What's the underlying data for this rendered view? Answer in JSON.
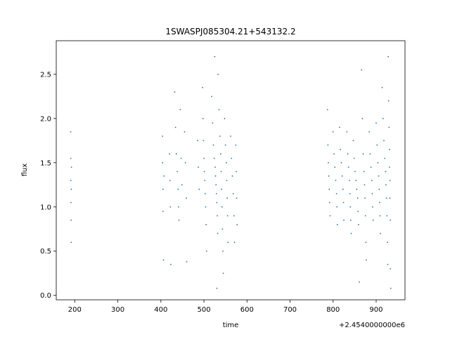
{
  "chart_data": {
    "type": "scatter",
    "title": "1SWASPJ085304.21+543132.2",
    "xlabel": "time",
    "ylabel": "flux",
    "x_offset_label": "+2.4540000000e6",
    "x_offset": 2454000,
    "xlim": [
      157,
      967
    ],
    "ylim": [
      -0.05,
      2.88
    ],
    "x_ticks": [
      200,
      300,
      400,
      500,
      600,
      700,
      800,
      900
    ],
    "y_ticks": [
      0.0,
      0.5,
      1.0,
      1.5,
      2.0,
      2.5
    ],
    "x_tick_labels": [
      "200",
      "300",
      "400",
      "500",
      "600",
      "700",
      "800",
      "900"
    ],
    "y_tick_labels": [
      "0.0",
      "0.5",
      "1.0",
      "1.5",
      "2.0",
      "2.5"
    ],
    "grid": false,
    "legend": "none",
    "marker_color": "#1f77b4",
    "series": [
      {
        "points": [
          [
            190.5,
            1.85
          ],
          [
            190.8,
            1.55
          ],
          [
            191.0,
            1.3
          ],
          [
            191.2,
            1.05
          ],
          [
            191.5,
            0.85
          ],
          [
            191.8,
            0.6
          ],
          [
            192.0,
            1.2
          ],
          [
            192.3,
            1.45
          ],
          [
            404,
            1.8
          ],
          [
            404,
            1.5
          ],
          [
            405,
            1.2
          ],
          [
            405,
            0.95
          ],
          [
            406,
            0.4
          ],
          [
            407,
            1.35
          ],
          [
            420,
            1.6
          ],
          [
            421,
            1.3
          ],
          [
            422,
            1.0
          ],
          [
            423,
            0.35
          ],
          [
            432,
            2.3
          ],
          [
            434,
            1.9
          ],
          [
            436,
            1.6
          ],
          [
            438,
            1.4
          ],
          [
            440,
            1.2
          ],
          [
            441,
            1.0
          ],
          [
            442,
            0.85
          ],
          [
            445,
            2.1
          ],
          [
            447,
            1.55
          ],
          [
            449,
            1.25
          ],
          [
            455,
            1.85
          ],
          [
            457,
            1.5
          ],
          [
            459,
            1.1
          ],
          [
            460,
            0.38
          ],
          [
            485,
            1.75
          ],
          [
            487,
            1.45
          ],
          [
            489,
            1.2
          ],
          [
            497,
            2.35
          ],
          [
            498,
            2.0
          ],
          [
            499,
            1.75
          ],
          [
            500,
            1.55
          ],
          [
            501,
            1.4
          ],
          [
            502,
            1.3
          ],
          [
            503,
            1.15
          ],
          [
            504,
            1.0
          ],
          [
            505,
            0.8
          ],
          [
            506,
            0.5
          ],
          [
            518,
            2.25
          ],
          [
            520,
            1.95
          ],
          [
            522,
            1.7
          ],
          [
            524,
            1.55
          ],
          [
            526,
            1.45
          ],
          [
            527,
            1.35
          ],
          [
            528,
            1.25
          ],
          [
            529,
            1.15
          ],
          [
            530,
            1.05
          ],
          [
            531,
            0.9
          ],
          [
            532,
            0.7
          ],
          [
            525,
            2.7
          ],
          [
            533,
            2.5
          ],
          [
            535,
            2.1
          ],
          [
            537,
            1.8
          ],
          [
            539,
            1.6
          ],
          [
            540,
            1.4
          ],
          [
            541,
            1.2
          ],
          [
            542,
            1.0
          ],
          [
            543,
            0.75
          ],
          [
            544,
            0.5
          ],
          [
            545,
            0.25
          ],
          [
            530,
            0.08
          ],
          [
            548,
            2.0
          ],
          [
            550,
            1.7
          ],
          [
            552,
            1.5
          ],
          [
            553,
            1.3
          ],
          [
            554,
            1.1
          ],
          [
            555,
            0.9
          ],
          [
            556,
            0.6
          ],
          [
            562,
            1.8
          ],
          [
            564,
            1.55
          ],
          [
            566,
            1.35
          ],
          [
            568,
            1.15
          ],
          [
            570,
            0.9
          ],
          [
            571,
            0.6
          ],
          [
            574,
            1.7
          ],
          [
            575,
            1.4
          ],
          [
            576,
            1.1
          ],
          [
            577,
            0.8
          ],
          [
            787,
            2.1
          ],
          [
            788,
            1.7
          ],
          [
            789,
            1.5
          ],
          [
            790,
            1.35
          ],
          [
            791,
            1.2
          ],
          [
            792,
            1.05
          ],
          [
            793,
            0.9
          ],
          [
            800,
            1.85
          ],
          [
            802,
            1.6
          ],
          [
            804,
            1.45
          ],
          [
            806,
            1.3
          ],
          [
            808,
            1.15
          ],
          [
            809,
            1.0
          ],
          [
            810,
            0.8
          ],
          [
            815,
            1.9
          ],
          [
            817,
            1.65
          ],
          [
            819,
            1.5
          ],
          [
            821,
            1.35
          ],
          [
            823,
            1.2
          ],
          [
            824,
            1.05
          ],
          [
            825,
            0.85
          ],
          [
            832,
            1.85
          ],
          [
            834,
            1.6
          ],
          [
            836,
            1.45
          ],
          [
            838,
            1.3
          ],
          [
            839,
            1.15
          ],
          [
            840,
            1.0
          ],
          [
            841,
            0.85
          ],
          [
            842,
            0.7
          ],
          [
            847,
            1.75
          ],
          [
            849,
            1.55
          ],
          [
            851,
            1.4
          ],
          [
            853,
            1.3
          ],
          [
            855,
            1.2
          ],
          [
            857,
            1.1
          ],
          [
            858,
            0.95
          ],
          [
            859,
            0.8
          ],
          [
            861,
            0.15
          ],
          [
            866,
            2.55
          ],
          [
            868,
            2.0
          ],
          [
            870,
            1.6
          ],
          [
            872,
            1.4
          ],
          [
            873,
            1.25
          ],
          [
            874,
            1.1
          ],
          [
            875,
            0.9
          ],
          [
            876,
            0.6
          ],
          [
            877,
            0.4
          ],
          [
            884,
            1.85
          ],
          [
            886,
            1.6
          ],
          [
            888,
            1.45
          ],
          [
            890,
            1.3
          ],
          [
            891,
            1.15
          ],
          [
            892,
            1.0
          ],
          [
            893,
            0.85
          ],
          [
            900,
            1.95
          ],
          [
            902,
            1.7
          ],
          [
            904,
            1.5
          ],
          [
            906,
            1.35
          ],
          [
            907,
            1.2
          ],
          [
            908,
            1.05
          ],
          [
            909,
            0.9
          ],
          [
            910,
            0.7
          ],
          [
            914,
            2.35
          ],
          [
            916,
            2.0
          ],
          [
            918,
            1.75
          ],
          [
            920,
            1.55
          ],
          [
            922,
            1.4
          ],
          [
            923,
            1.25
          ],
          [
            924,
            1.1
          ],
          [
            925,
            0.9
          ],
          [
            926,
            0.6
          ],
          [
            927,
            0.35
          ],
          [
            928,
            2.7
          ],
          [
            929,
            2.2
          ],
          [
            930,
            1.9
          ],
          [
            931,
            1.65
          ],
          [
            931,
            1.45
          ],
          [
            932,
            1.3
          ],
          [
            932,
            1.1
          ],
          [
            933,
            0.85
          ],
          [
            933,
            0.3
          ],
          [
            934,
            0.08
          ]
        ]
      }
    ]
  }
}
